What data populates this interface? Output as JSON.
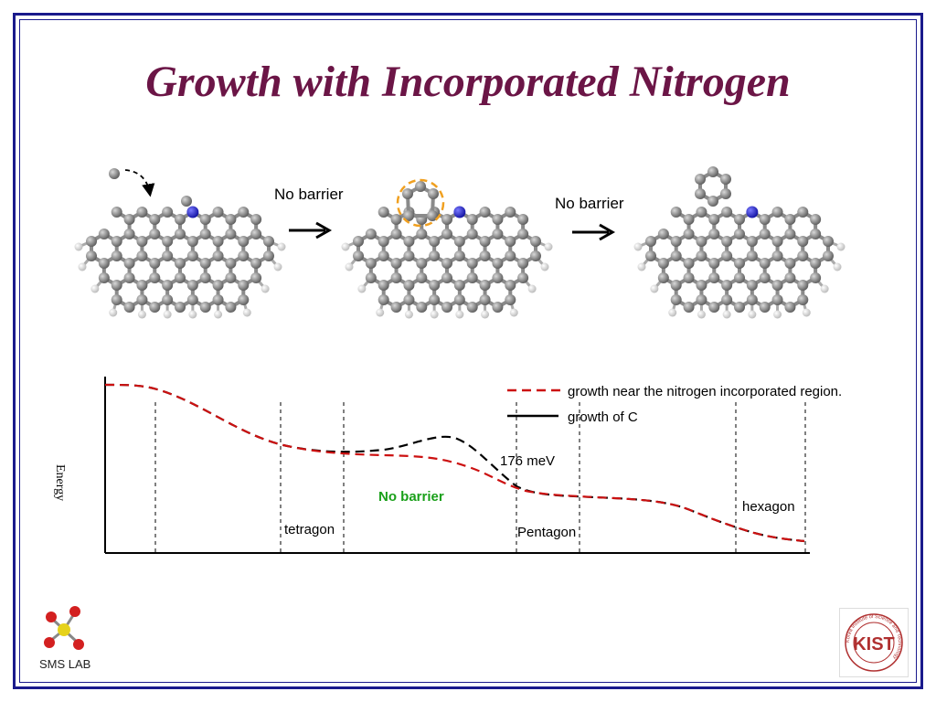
{
  "slide": {
    "title": "Growth with Incorporated Nitrogen",
    "colors": {
      "title": "#6b1546",
      "frame": "#1a1a8c",
      "carbon": "#8a8a8a",
      "nitrogen": "#2a2ad0",
      "hydrogen": "#f0f0f0",
      "highlight": "#f0a020"
    }
  },
  "reaction": {
    "arrow1_label": "No barrier",
    "arrow2_label": "No barrier"
  },
  "energy_diagram": {
    "y_axis_label": "Energy",
    "legend": [
      {
        "label": "growth near the nitrogen incorporated region.",
        "style": "dashed",
        "color": "#cc1111"
      },
      {
        "label": "growth of C",
        "style": "solid",
        "color": "#000000"
      }
    ],
    "annotations": {
      "barrier_value": "176 meV",
      "no_barrier": "No barrier",
      "tetragon": "tetragon",
      "pentagon": "Pentagon",
      "hexagon": "hexagon"
    }
  },
  "footer": {
    "lab_logo_text": "SMS LAB",
    "institute_logo_text": "KIST",
    "institute_ring_text": "Korea Institute of Science and Technology"
  }
}
